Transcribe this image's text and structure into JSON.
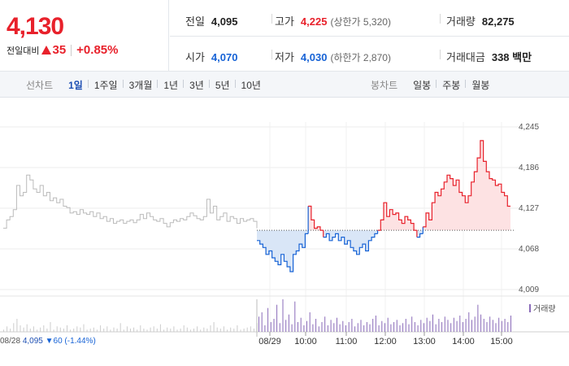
{
  "header": {
    "price": "4,130",
    "change_label": "전일대비",
    "change_value": "35",
    "change_rate": "+0.85%"
  },
  "stats": {
    "prev_close": {
      "label": "전일",
      "value": "4,095"
    },
    "open": {
      "label": "시가",
      "value": "4,070"
    },
    "high": {
      "label": "고가",
      "value": "4,225",
      "sub": "(상한가 5,320)"
    },
    "low": {
      "label": "저가",
      "value": "4,030",
      "sub": "(하한가 2,870)"
    },
    "volume": {
      "label": "거래량",
      "value": "82,275"
    },
    "amount": {
      "label": "거래대금",
      "value": "338 백만"
    }
  },
  "toolbar": {
    "line_title": "선차트",
    "line_periods": [
      "1일",
      "1주일",
      "3개월",
      "1년",
      "3년",
      "5년",
      "10년"
    ],
    "line_active": "1일",
    "candle_title": "봉차트",
    "candle_periods": [
      "일봉",
      "주봉",
      "월봉"
    ]
  },
  "chart_data": {
    "type": "line",
    "y_ticks": [
      "4,245",
      "4,186",
      "4,127",
      "4,068",
      "4,009"
    ],
    "ylim": [
      4009,
      4245
    ],
    "x_labels": [
      "08/28",
      "08/29",
      "10:00",
      "11:00",
      "12:00",
      "13:00",
      "14:00",
      "15:00"
    ],
    "baseline": 4095,
    "volume_legend": "거래량",
    "prev_day": {
      "date": "08/28",
      "close": "4,095",
      "change": "▼60 (-1.44%)"
    },
    "colors": {
      "up": "#e8212b",
      "down": "#1763d6",
      "up_fill": "#fde2e3",
      "down_fill": "#d9e6f7",
      "prev": "#bbbbbb",
      "volume": "#8a6bb9"
    },
    "prev_series": [
      4098,
      4110,
      4115,
      4125,
      4160,
      4145,
      4150,
      4175,
      4168,
      4155,
      4150,
      4160,
      4145,
      4150,
      4138,
      4142,
      4135,
      4140,
      4130,
      4128,
      4120,
      4122,
      4118,
      4125,
      4120,
      4118,
      4122,
      4115,
      4120,
      4112,
      4115,
      4108,
      4112,
      4105,
      4108,
      4110,
      4105,
      4108,
      4110,
      4106,
      4110,
      4118,
      4112,
      4120,
      4115,
      4110,
      4108,
      4112,
      4105,
      4100,
      4106,
      4110,
      4108,
      4112,
      4110,
      4115,
      4120,
      4116,
      4112,
      4110,
      4115,
      4140,
      4120,
      4130,
      4110,
      4115,
      4120,
      4108,
      4115,
      4112,
      4105,
      4112,
      4108,
      4110,
      4112,
      4108,
      4098
    ],
    "today_series": [
      4080,
      4075,
      4070,
      4060,
      4065,
      4055,
      4050,
      4045,
      4060,
      4050,
      4042,
      4035,
      4060,
      4065,
      4075,
      4070,
      4090,
      4130,
      4110,
      4098,
      4100,
      4095,
      4085,
      4090,
      4080,
      4085,
      4090,
      4080,
      4085,
      4075,
      4080,
      4070,
      4065,
      4060,
      4070,
      4075,
      4065,
      4080,
      4085,
      4090,
      4095,
      4110,
      4135,
      4115,
      4125,
      4118,
      4120,
      4110,
      4105,
      4115,
      4110,
      4105,
      4095,
      4085,
      4090,
      4100,
      4120,
      4110,
      4135,
      4150,
      4145,
      4155,
      4165,
      4175,
      4170,
      4160,
      4168,
      4150,
      4145,
      4135,
      4145,
      4165,
      4180,
      4200,
      4225,
      4195,
      4180,
      4170,
      4168,
      4160,
      4162,
      4150,
      4145,
      4130,
      4130
    ],
    "volumes_prev": [
      2,
      5,
      3,
      8,
      12,
      6,
      4,
      7,
      3,
      5,
      2,
      4,
      6,
      3,
      9,
      2,
      5,
      4,
      3,
      6,
      2,
      3,
      5,
      4,
      7,
      2,
      3,
      4,
      2,
      6,
      3,
      5,
      2,
      4,
      3,
      8,
      2,
      5,
      3,
      4,
      2,
      6,
      3,
      2,
      4,
      5,
      3,
      7,
      2,
      4,
      3,
      5,
      2,
      3,
      6,
      4,
      2,
      3,
      5,
      2,
      4,
      3,
      6,
      9,
      4,
      3,
      5,
      2,
      4,
      3,
      6,
      2,
      3,
      4,
      5,
      3,
      8
    ],
    "volumes_today": [
      14,
      18,
      6,
      22,
      9,
      12,
      25,
      8,
      30,
      11,
      16,
      7,
      28,
      9,
      13,
      6,
      10,
      18,
      7,
      12,
      5,
      9,
      14,
      6,
      11,
      8,
      13,
      7,
      10,
      6,
      9,
      12,
      5,
      8,
      11,
      6,
      9,
      7,
      12,
      15,
      6,
      10,
      8,
      13,
      7,
      9,
      11,
      6,
      8,
      12,
      7,
      14,
      9,
      6,
      11,
      8,
      13,
      10,
      16,
      7,
      12,
      9,
      14,
      11,
      8,
      13,
      10,
      15,
      9,
      12,
      18,
      11,
      14,
      25,
      16,
      12,
      9,
      14,
      11,
      8,
      13,
      10,
      12,
      9,
      15
    ]
  }
}
